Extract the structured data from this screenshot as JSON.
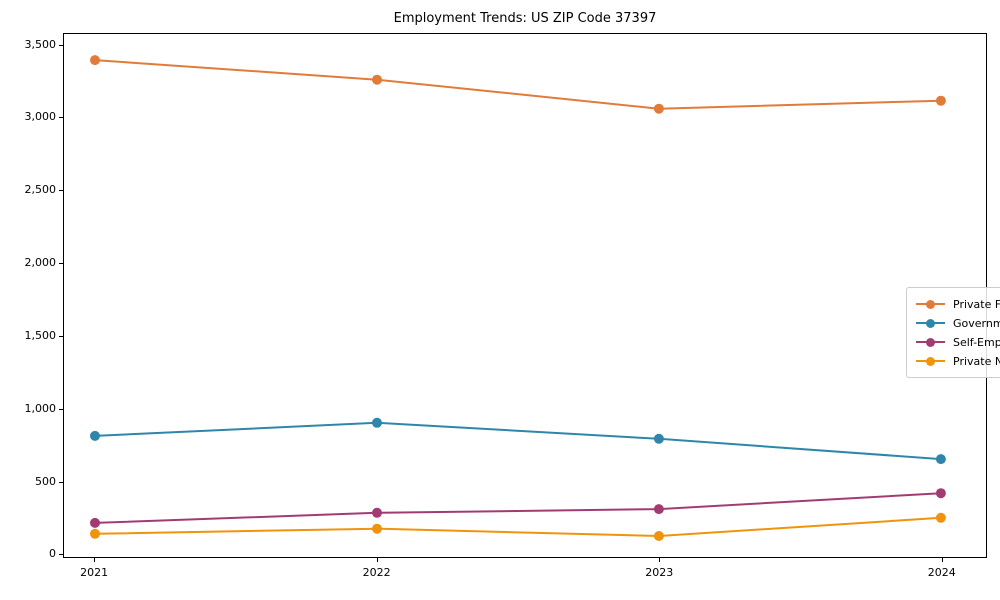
{
  "chart_data": {
    "type": "line",
    "title": "Employment Trends: US ZIP Code 37397",
    "x": [
      2021,
      2022,
      2023,
      2024
    ],
    "x_tick_labels": [
      "2021",
      "2022",
      "2023",
      "2024"
    ],
    "series": [
      {
        "name": "Private For-Profit",
        "color": "#e07b39",
        "values": [
          3400,
          3265,
          3065,
          3120
        ]
      },
      {
        "name": "Government",
        "color": "#2e86ab",
        "values": [
          810,
          900,
          790,
          650
        ]
      },
      {
        "name": "Self-Employed",
        "color": "#a23b72",
        "values": [
          210,
          280,
          305,
          415
        ]
      },
      {
        "name": "Private Non-Profit",
        "color": "#f0930d",
        "values": [
          135,
          170,
          120,
          245
        ]
      }
    ],
    "yticks": {
      "values": [
        0,
        500,
        1000,
        1500,
        2000,
        2500,
        3000,
        3500
      ],
      "labels": [
        "0",
        "500",
        "1,000",
        "1,500",
        "2,000",
        "2,500",
        "3,000",
        "3,500"
      ]
    },
    "xlim": [
      2020.89,
      2024.16
    ],
    "ylim": [
      -25,
      3580
    ],
    "grid": false,
    "legend_position": "center-right",
    "marker": "circle",
    "xlabel": "",
    "ylabel": ""
  }
}
